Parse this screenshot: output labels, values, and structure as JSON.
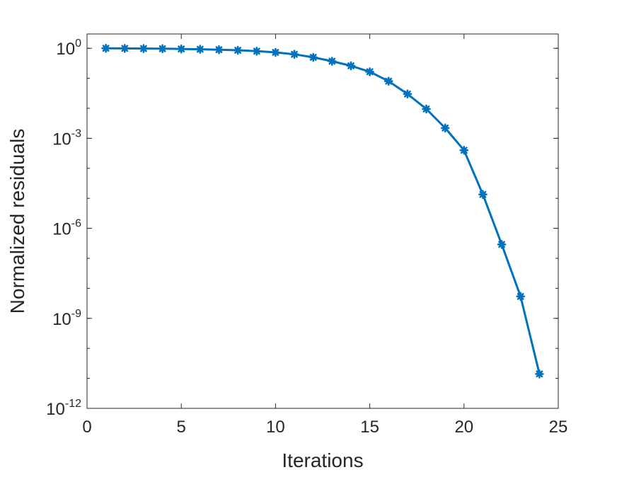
{
  "chart_data": {
    "type": "line",
    "title": "",
    "xlabel": "Iterations",
    "ylabel": "Normalized residuals",
    "xlim": [
      0,
      25
    ],
    "ylim": [
      1e-12,
      3
    ],
    "yscale": "log",
    "grid": false,
    "x_ticks": [
      0,
      5,
      10,
      15,
      20,
      25
    ],
    "y_ticks": [
      {
        "value": 1e-12,
        "base": "10",
        "exp": "-12"
      },
      {
        "value": 1e-09,
        "base": "10",
        "exp": "-9"
      },
      {
        "value": 1e-06,
        "base": "10",
        "exp": "-6"
      },
      {
        "value": 0.001,
        "base": "10",
        "exp": "-3"
      },
      {
        "value": 1,
        "base": "10",
        "exp": "0"
      }
    ],
    "series": [
      {
        "color": "#0072BD",
        "marker": "asterisk",
        "x": [
          1,
          2,
          3,
          4,
          5,
          6,
          7,
          8,
          9,
          10,
          11,
          12,
          13,
          14,
          15,
          16,
          17,
          18,
          19,
          20,
          21,
          22,
          23,
          24
        ],
        "y": [
          1.0,
          0.99,
          0.98,
          0.97,
          0.95,
          0.93,
          0.9,
          0.86,
          0.8,
          0.73,
          0.63,
          0.5,
          0.37,
          0.26,
          0.165,
          0.08,
          0.03,
          0.0095,
          0.0022,
          0.0004,
          1.35e-05,
          2.9e-07,
          5.4e-09,
          1.4e-11
        ]
      }
    ]
  }
}
